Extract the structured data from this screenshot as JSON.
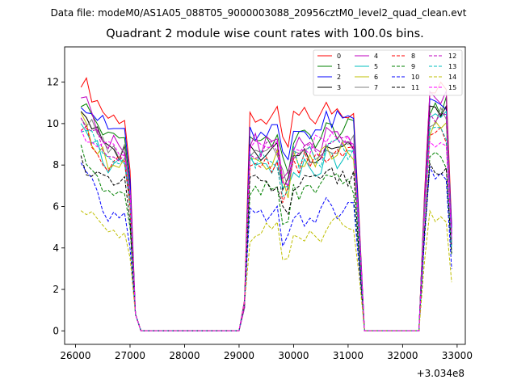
{
  "header": {
    "supertitle": "Data file: modeM0/AS1A05_088T05_9000003088_20956cztM0_level2_quad_clean.evt"
  },
  "chart_data": {
    "type": "line",
    "title": "Quadrant 2 module wise count rates with 100.0s bins.",
    "xlabel": "",
    "ylabel": "",
    "x_offset_label": "+3.034e8",
    "xlim": [
      25800,
      33150
    ],
    "ylim": [
      -0.65,
      13.7
    ],
    "xticks": [
      26000,
      27000,
      28000,
      29000,
      30000,
      31000,
      32000,
      33000
    ],
    "xtick_labels": [
      "26000",
      "27000",
      "28000",
      "29000",
      "30000",
      "31000",
      "32000",
      "33000"
    ],
    "yticks": [
      0,
      2,
      4,
      6,
      8,
      10,
      12
    ],
    "ytick_labels": [
      "0",
      "2",
      "4",
      "6",
      "8",
      "10",
      "12"
    ],
    "grid": false,
    "legend_position": "top-right",
    "legend_columns": 4,
    "series_note": "x values are (time - 3.034e8) seconds; 16 module series",
    "segments": [
      {
        "start": 26100,
        "count": 9
      },
      {
        "start": 27000,
        "count": 21
      },
      {
        "start": 29100,
        "count": 22
      },
      {
        "start": 31300,
        "count": 11
      },
      {
        "start": 32400,
        "count": 6
      }
    ],
    "series": [
      {
        "name": "0",
        "color": "#ff0000",
        "dash": false,
        "base": 10.3,
        "b": 12.2
      },
      {
        "name": "1",
        "color": "#008000",
        "dash": false,
        "base": 9.3,
        "b": 11.1
      },
      {
        "name": "2",
        "color": "#0000ff",
        "dash": false,
        "base": 9.7,
        "b": 11.2
      },
      {
        "name": "3",
        "color": "#000000",
        "dash": false,
        "base": 8.6,
        "b": 10.8
      },
      {
        "name": "4",
        "color": "#bf00bf",
        "dash": false,
        "base": 9.0,
        "b": 11.5
      },
      {
        "name": "5",
        "color": "#00bfbf",
        "dash": false,
        "base": 7.9,
        "b": 10.4
      },
      {
        "name": "6",
        "color": "#bfbf00",
        "dash": false,
        "base": 8.2,
        "b": 10.1
      },
      {
        "name": "7",
        "color": "#808080",
        "dash": false,
        "base": 8.7,
        "b": 10.6
      },
      {
        "name": "8",
        "color": "#ff0000",
        "dash": true,
        "base": 8.1,
        "b": 9.8
      },
      {
        "name": "9",
        "color": "#008000",
        "dash": true,
        "base": 6.7,
        "b": 8.6
      },
      {
        "name": "10",
        "color": "#0000ff",
        "dash": true,
        "base": 5.5,
        "b": 7.9
      },
      {
        "name": "11",
        "color": "#000000",
        "dash": true,
        "base": 7.0,
        "b": 8.2
      },
      {
        "name": "12",
        "color": "#bf00bf",
        "dash": true,
        "base": 8.6,
        "b": 10.3
      },
      {
        "name": "13",
        "color": "#00bfbf",
        "dash": true,
        "base": 8.4,
        "b": 9.8
      },
      {
        "name": "14",
        "color": "#bfbf00",
        "dash": true,
        "base": 4.8,
        "b": 5.8
      },
      {
        "name": "15",
        "color": "#ff00ff",
        "dash": true,
        "base": 8.9,
        "b": 9.6
      }
    ]
  }
}
